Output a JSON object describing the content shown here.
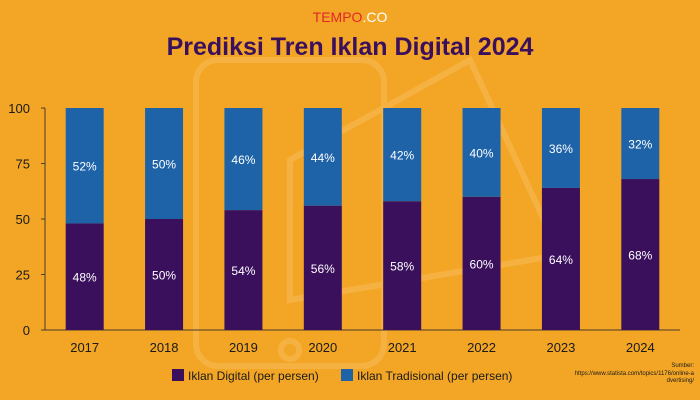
{
  "brand": {
    "tempo": "TEMPO",
    "co": ".CO"
  },
  "chart_data": {
    "type": "bar",
    "stacked": true,
    "title": "Prediksi Tren Iklan Digital 2024",
    "categories": [
      "2017",
      "2018",
      "2019",
      "2020",
      "2021",
      "2022",
      "2023",
      "2024"
    ],
    "series": [
      {
        "name": "Iklan Digital (per persen)",
        "color": "#3A0F5C",
        "values": [
          48,
          50,
          54,
          56,
          58,
          60,
          64,
          68
        ]
      },
      {
        "name": "Iklan Tradisional (per persen)",
        "color": "#1E63A8",
        "values": [
          52,
          50,
          46,
          44,
          42,
          40,
          36,
          32
        ]
      }
    ],
    "value_suffix": "%",
    "ylim": [
      0,
      100
    ],
    "yticks": [
      0,
      25,
      50,
      75,
      100
    ],
    "grid": false,
    "legend_position": "bottom"
  },
  "source": {
    "label": "Sumber:",
    "url": "https://www.statista.com/topics/1176/online-advertising/"
  },
  "colors": {
    "background": "#F3A625",
    "title": "#3A0F5C",
    "brand_red": "#E3262B",
    "axis": "#4A3A2A"
  }
}
